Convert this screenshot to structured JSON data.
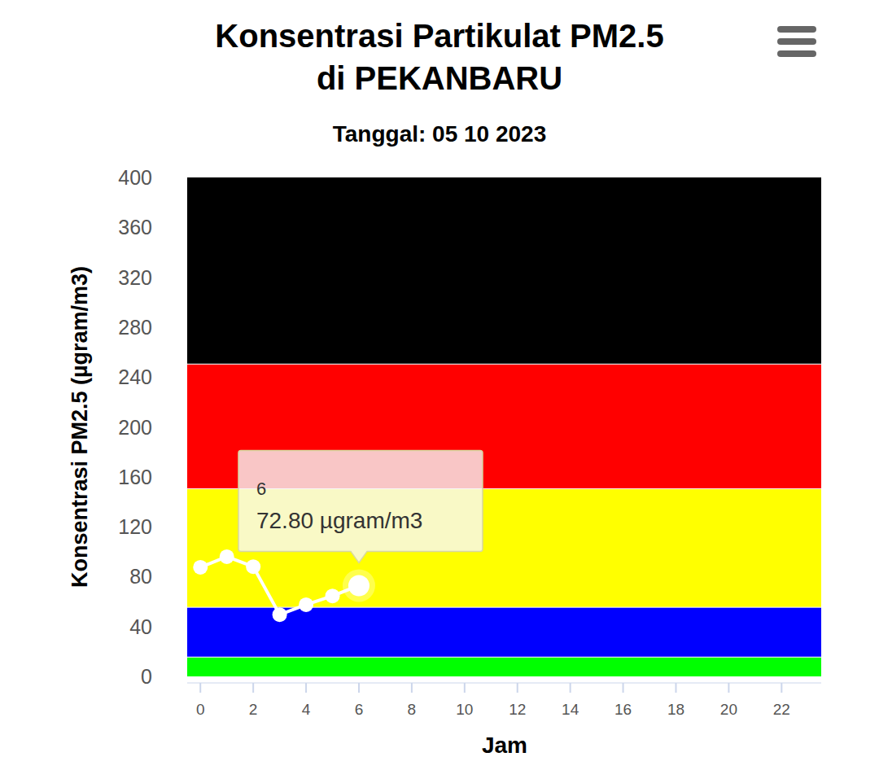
{
  "chart_data": {
    "type": "line",
    "title": "Konsentrasi Partikulat PM2.5\ndi PEKANBARU",
    "subtitle": "Tanggal: 05 10 2023",
    "x_label": "Jam",
    "y_label": "Konsentrasi PM2.5 (µgram/m3)",
    "x": [
      0,
      1,
      2,
      3,
      4,
      5,
      6
    ],
    "series": [
      {
        "name": "PM2.5",
        "color": "#ffffff",
        "marker": "circle",
        "values": [
          87.5,
          96,
          88,
          49.5,
          57.5,
          64.5,
          72.8
        ]
      }
    ],
    "xlim": [
      -0.5,
      23.5
    ],
    "xticks": [
      0,
      2,
      4,
      6,
      8,
      10,
      12,
      14,
      16,
      18,
      20,
      22
    ],
    "ylim": [
      0,
      400
    ],
    "yticks": [
      0,
      40,
      80,
      120,
      160,
      200,
      240,
      280,
      320,
      360,
      400
    ],
    "grid": false,
    "bands": [
      {
        "from": 0,
        "to": 15.5,
        "color": "#00ff00"
      },
      {
        "from": 15.5,
        "to": 55.4,
        "color": "#0000ff"
      },
      {
        "from": 55.4,
        "to": 150.4,
        "color": "#ffff00"
      },
      {
        "from": 150.4,
        "to": 250.4,
        "color": "#ff0000"
      },
      {
        "from": 250.4,
        "to": 400,
        "color": "#000000"
      }
    ],
    "annotations": [
      {
        "x": 6,
        "y": 72.8,
        "title": "6",
        "text": "72.80 µgram/m3"
      }
    ]
  }
}
